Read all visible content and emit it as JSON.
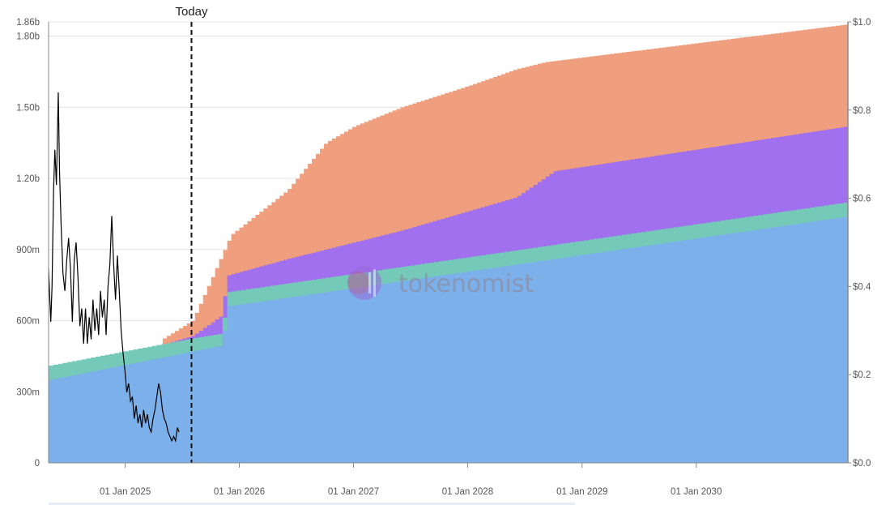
{
  "chart_data": {
    "type": "area",
    "stacked": true,
    "x_axis": {
      "range": [
        "2024-05-01",
        "2031-05-01"
      ],
      "tick_labels": [
        "01 Jan 2025",
        "01 Jan 2026",
        "01 Jan 2027",
        "01 Jan 2028",
        "01 Jan 2029",
        "01 Jan 2030"
      ],
      "tick_dates": [
        "2025-01-01",
        "2026-01-01",
        "2027-01-01",
        "2028-01-01",
        "2029-01-01",
        "2030-01-01"
      ]
    },
    "y_left": {
      "range": [
        0,
        1860000000
      ],
      "tick_values": [
        0,
        300000000,
        600000000,
        900000000,
        1200000000,
        1500000000,
        1800000000,
        1860000000
      ],
      "tick_labels": [
        "0",
        "300m",
        "600m",
        "900m",
        "1.20b",
        "1.50b",
        "1.80b",
        "1.86b"
      ]
    },
    "y_right": {
      "range": [
        0,
        1.0
      ],
      "tick_values": [
        0,
        0.2,
        0.4,
        0.6,
        0.8,
        1.0
      ],
      "tick_labels": [
        "$0.0",
        "$0.2",
        "$0.4",
        "$0.6",
        "$0.8",
        "$1.0"
      ]
    },
    "grid": "horizontal",
    "today": {
      "label": "Today",
      "date": "2025-08-01"
    },
    "series": [
      {
        "color": "#7cb0ea",
        "points": [
          [
            "2024-05-01",
            350000000
          ],
          [
            "2025-08-01",
            470000000
          ],
          [
            "2025-11-01",
            495000000
          ],
          [
            "2025-11-20",
            660000000
          ],
          [
            "2031-05-01",
            1040000000
          ]
        ]
      },
      {
        "color": "#74c9b8",
        "points": [
          [
            "2024-05-01",
            410000000
          ],
          [
            "2025-08-01",
            525000000
          ],
          [
            "2025-11-01",
            545000000
          ],
          [
            "2025-11-20",
            720000000
          ],
          [
            "2031-05-01",
            1100000000
          ]
        ]
      },
      {
        "color": "#a070ee",
        "points": [
          [
            "2025-05-01",
            500000000
          ],
          [
            "2025-08-01",
            535000000
          ],
          [
            "2025-11-01",
            620000000
          ],
          [
            "2025-11-20",
            790000000
          ],
          [
            "2026-06-01",
            860000000
          ],
          [
            "2027-06-01",
            980000000
          ],
          [
            "2028-06-01",
            1120000000
          ],
          [
            "2028-10-01",
            1230000000
          ],
          [
            "2031-05-01",
            1420000000
          ]
        ]
      },
      {
        "color": "#f09f7e",
        "points": [
          [
            "2025-05-01",
            525000000
          ],
          [
            "2025-08-01",
            600000000
          ],
          [
            "2025-11-01",
            870000000
          ],
          [
            "2025-12-01",
            960000000
          ],
          [
            "2026-06-01",
            1150000000
          ],
          [
            "2026-10-01",
            1350000000
          ],
          [
            "2027-01-01",
            1420000000
          ],
          [
            "2027-06-01",
            1500000000
          ],
          [
            "2028-01-01",
            1590000000
          ],
          [
            "2028-06-01",
            1660000000
          ],
          [
            "2028-09-01",
            1690000000
          ],
          [
            "2031-05-01",
            1850000000
          ]
        ]
      }
    ],
    "price_line": {
      "color": "#000000",
      "axis": "right",
      "points": [
        [
          "2024-05-01",
          0.44
        ],
        [
          "2024-05-08",
          0.32
        ],
        [
          "2024-05-12",
          0.4
        ],
        [
          "2024-05-17",
          0.62
        ],
        [
          "2024-05-21",
          0.71
        ],
        [
          "2024-05-26",
          0.63
        ],
        [
          "2024-06-01",
          0.84
        ],
        [
          "2024-06-05",
          0.66
        ],
        [
          "2024-06-10",
          0.54
        ],
        [
          "2024-06-16",
          0.43
        ],
        [
          "2024-06-22",
          0.39
        ],
        [
          "2024-06-28",
          0.46
        ],
        [
          "2024-07-04",
          0.51
        ],
        [
          "2024-07-10",
          0.44
        ],
        [
          "2024-07-16",
          0.32
        ],
        [
          "2024-07-22",
          0.46
        ],
        [
          "2024-07-28",
          0.5
        ],
        [
          "2024-08-03",
          0.42
        ],
        [
          "2024-08-09",
          0.31
        ],
        [
          "2024-08-15",
          0.35
        ],
        [
          "2024-08-21",
          0.27
        ],
        [
          "2024-08-27",
          0.35
        ],
        [
          "2024-09-02",
          0.27
        ],
        [
          "2024-09-08",
          0.33
        ],
        [
          "2024-09-14",
          0.28
        ],
        [
          "2024-09-20",
          0.37
        ],
        [
          "2024-09-26",
          0.3
        ],
        [
          "2024-10-02",
          0.35
        ],
        [
          "2024-10-08",
          0.29
        ],
        [
          "2024-10-14",
          0.39
        ],
        [
          "2024-10-20",
          0.33
        ],
        [
          "2024-10-26",
          0.37
        ],
        [
          "2024-11-01",
          0.29
        ],
        [
          "2024-11-07",
          0.4
        ],
        [
          "2024-11-13",
          0.45
        ],
        [
          "2024-11-19",
          0.56
        ],
        [
          "2024-11-25",
          0.45
        ],
        [
          "2024-12-01",
          0.37
        ],
        [
          "2024-12-07",
          0.47
        ],
        [
          "2024-12-13",
          0.39
        ],
        [
          "2024-12-19",
          0.3
        ],
        [
          "2024-12-25",
          0.25
        ],
        [
          "2024-12-31",
          0.21
        ],
        [
          "2025-01-06",
          0.16
        ],
        [
          "2025-01-12",
          0.18
        ],
        [
          "2025-01-18",
          0.14
        ],
        [
          "2025-01-24",
          0.15
        ],
        [
          "2025-01-30",
          0.1
        ],
        [
          "2025-02-05",
          0.13
        ],
        [
          "2025-02-11",
          0.09
        ],
        [
          "2025-02-17",
          0.11
        ],
        [
          "2025-02-23",
          0.08
        ],
        [
          "2025-03-01",
          0.12
        ],
        [
          "2025-03-07",
          0.09
        ],
        [
          "2025-03-13",
          0.11
        ],
        [
          "2025-03-19",
          0.08
        ],
        [
          "2025-03-25",
          0.07
        ],
        [
          "2025-03-31",
          0.1
        ],
        [
          "2025-04-06",
          0.12
        ],
        [
          "2025-04-12",
          0.15
        ],
        [
          "2025-04-18",
          0.18
        ],
        [
          "2025-04-24",
          0.16
        ],
        [
          "2025-04-30",
          0.12
        ],
        [
          "2025-05-06",
          0.1
        ],
        [
          "2025-05-12",
          0.09
        ],
        [
          "2025-05-18",
          0.07
        ],
        [
          "2025-05-24",
          0.06
        ],
        [
          "2025-05-30",
          0.05
        ],
        [
          "2025-06-05",
          0.06
        ],
        [
          "2025-06-11",
          0.05
        ],
        [
          "2025-06-17",
          0.08
        ],
        [
          "2025-06-22",
          0.07
        ]
      ]
    }
  },
  "watermark": {
    "text": "tokenomist"
  }
}
